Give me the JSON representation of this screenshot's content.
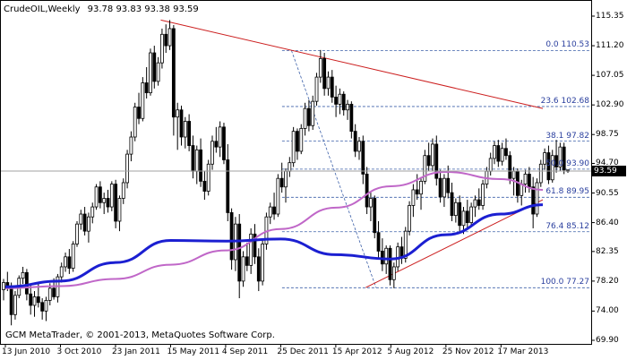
{
  "header": {
    "symbol": "CrudeOIL,Weekly",
    "ohlc": [
      "93.78",
      "93.83",
      "93.38",
      "93.59"
    ]
  },
  "footer": {
    "copyright": "GCM MetaTrader, © 2001-2013, MetaQuotes Software Corp."
  },
  "current_price": "93.59",
  "colors": {
    "candles": "#000000",
    "ma_fast": "#c067c8",
    "ma_slow": "#1b1fd1",
    "trendline": "#cc1f1f",
    "fib_levels": "#3b5fa8",
    "grid_frame": "#000000"
  },
  "chart_data": {
    "type": "candlestick",
    "instrument": "CrudeOIL",
    "timeframe": "Weekly",
    "y_axis": {
      "ticks": [
        "115.35",
        "111.20",
        "107.05",
        "102.90",
        "98.75",
        "94.70",
        "90.55",
        "86.40",
        "82.35",
        "78.20",
        "74.00",
        "69.90"
      ],
      "range": [
        69.9,
        115.35
      ]
    },
    "x_axis": {
      "ticks": [
        "13 Jun 2010",
        "3 Oct 2010",
        "23 Jan 2011",
        "15 May 2011",
        "4 Sep 2011",
        "25 Dec 2011",
        "15 Apr 2012",
        "5 Aug 2012",
        "25 Nov 2012",
        "17 Mar 2013"
      ]
    },
    "fibonacci_levels": [
      {
        "label": "0.0 110.53",
        "value": 110.53
      },
      {
        "label": "23.6 102.68",
        "value": 102.68
      },
      {
        "label": "38.1 97.82",
        "value": 97.82
      },
      {
        "label": "50.0 93.90",
        "value": 93.9
      },
      {
        "label": "61.8 89.95",
        "value": 89.95
      },
      {
        "label": "76.4 85.12",
        "value": 85.12
      },
      {
        "label": "100.0 77.27",
        "value": 77.27
      }
    ],
    "trendlines": [
      {
        "from": [
          "25 Apr 2011",
          114.8
        ],
        "to": [
          "10 Jun 2013",
          102.4
        ]
      },
      {
        "from": [
          "15 Jun 2012",
          77.3
        ],
        "to": [
          "10 Jun 2013",
          89.6
        ]
      }
    ],
    "series": [
      {
        "kind": "moving_average",
        "x": [
          "13 Jun 2010",
          "3 Oct 2010",
          "23 Jan 2011",
          "15 May 2011",
          "4 Sep 2011",
          "25 Dec 2011",
          "15 Apr 2012",
          "5 Aug 2012",
          "25 Nov 2012",
          "17 Mar 2013",
          "10 Jun 2013"
        ],
        "values": [
          77.2,
          77.5,
          78.5,
          80.5,
          82.5,
          85.5,
          88.5,
          91.5,
          93.5,
          92.5,
          91.0
        ]
      },
      {
        "kind": "moving_average",
        "x": [
          "13 Jun 2010",
          "3 Oct 2010",
          "23 Jan 2011",
          "15 May 2011",
          "4 Sep 2011",
          "25 Dec 2011",
          "15 Apr 2012",
          "5 Aug 2012",
          "25 Nov 2012",
          "17 Mar 2013",
          "10 Jun 2013"
        ],
        "values": [
          77.4,
          78.2,
          80.8,
          83.9,
          83.8,
          84.1,
          81.9,
          81.3,
          84.7,
          87.6,
          88.9
        ]
      }
    ],
    "candles": [
      [
        77.0,
        78.5,
        75.5,
        78.0
      ],
      [
        78.0,
        79.5,
        76.8,
        77.2
      ],
      [
        77.2,
        78.0,
        72.0,
        73.5
      ],
      [
        73.5,
        76.8,
        72.8,
        76.2
      ],
      [
        76.2,
        79.0,
        75.8,
        78.6
      ],
      [
        78.6,
        80.2,
        77.8,
        79.4
      ],
      [
        79.4,
        79.9,
        75.5,
        76.4
      ],
      [
        76.4,
        77.6,
        73.5,
        74.8
      ],
      [
        74.8,
        76.8,
        73.2,
        76.0
      ],
      [
        76.0,
        77.8,
        74.5,
        75.2
      ],
      [
        75.2,
        75.8,
        72.8,
        74.0
      ],
      [
        74.0,
        76.0,
        72.6,
        75.5
      ],
      [
        75.5,
        77.9,
        74.8,
        77.2
      ],
      [
        77.2,
        78.6,
        75.6,
        76.0
      ],
      [
        76.0,
        79.2,
        75.2,
        78.8
      ],
      [
        78.8,
        80.8,
        78.0,
        80.2
      ],
      [
        80.2,
        82.2,
        79.5,
        81.6
      ],
      [
        81.6,
        82.7,
        79.2,
        80.0
      ],
      [
        80.0,
        83.8,
        79.5,
        83.4
      ],
      [
        83.4,
        86.6,
        83.0,
        86.2
      ],
      [
        86.2,
        88.2,
        85.4,
        87.6
      ],
      [
        87.6,
        88.6,
        84.6,
        85.2
      ],
      [
        85.2,
        87.8,
        83.6,
        87.2
      ],
      [
        87.2,
        89.2,
        86.3,
        88.6
      ],
      [
        88.6,
        91.8,
        88.2,
        91.4
      ],
      [
        91.4,
        92.2,
        88.4,
        89.2
      ],
      [
        89.2,
        90.6,
        87.6,
        89.8
      ],
      [
        89.8,
        91.0,
        87.8,
        88.6
      ],
      [
        88.6,
        92.2,
        88.0,
        91.8
      ],
      [
        91.8,
        92.4,
        85.6,
        86.6
      ],
      [
        86.6,
        90.2,
        85.2,
        89.8
      ],
      [
        89.8,
        92.6,
        89.0,
        92.0
      ],
      [
        92.0,
        96.6,
        91.2,
        96.0
      ],
      [
        96.0,
        99.2,
        95.0,
        98.4
      ],
      [
        98.4,
        103.2,
        97.8,
        102.6
      ],
      [
        102.6,
        104.6,
        100.2,
        101.0
      ],
      [
        101.0,
        106.8,
        100.6,
        106.0
      ],
      [
        106.0,
        108.2,
        103.8,
        104.6
      ],
      [
        104.6,
        110.8,
        104.2,
        110.2
      ],
      [
        110.2,
        111.2,
        105.2,
        106.2
      ],
      [
        106.2,
        109.6,
        105.6,
        108.8
      ],
      [
        108.8,
        113.6,
        108.0,
        112.8
      ],
      [
        112.8,
        114.2,
        110.2,
        111.2
      ],
      [
        111.2,
        114.8,
        110.6,
        113.6
      ],
      [
        113.6,
        114.1,
        98.6,
        101.2
      ],
      [
        101.2,
        103.2,
        96.6,
        102.2
      ],
      [
        102.2,
        102.8,
        97.2,
        98.4
      ],
      [
        98.4,
        101.2,
        96.8,
        100.6
      ],
      [
        100.6,
        101.6,
        96.4,
        97.2
      ],
      [
        97.2,
        98.6,
        92.6,
        93.6
      ],
      [
        93.6,
        97.2,
        91.8,
        96.6
      ],
      [
        96.6,
        98.2,
        91.4,
        92.2
      ],
      [
        92.2,
        93.6,
        89.6,
        90.8
      ],
      [
        90.8,
        95.2,
        90.2,
        94.6
      ],
      [
        94.6,
        98.6,
        93.8,
        97.8
      ],
      [
        97.8,
        99.8,
        96.2,
        97.0
      ],
      [
        97.0,
        100.6,
        95.6,
        99.8
      ],
      [
        99.8,
        100.4,
        94.6,
        95.2
      ],
      [
        95.2,
        97.4,
        86.6,
        87.8
      ],
      [
        87.8,
        88.4,
        79.8,
        81.2
      ],
      [
        81.2,
        87.2,
        79.6,
        86.2
      ],
      [
        86.2,
        87.6,
        75.8,
        78.2
      ],
      [
        78.2,
        82.4,
        77.4,
        81.6
      ],
      [
        81.6,
        83.6,
        79.6,
        80.4
      ],
      [
        80.4,
        85.6,
        79.2,
        84.8
      ],
      [
        84.8,
        86.2,
        80.6,
        81.6
      ],
      [
        81.6,
        82.8,
        76.8,
        78.2
      ],
      [
        78.2,
        84.2,
        77.6,
        83.4
      ],
      [
        83.4,
        87.8,
        82.6,
        87.2
      ],
      [
        87.2,
        89.2,
        86.2,
        88.6
      ],
      [
        88.6,
        90.6,
        86.8,
        87.6
      ],
      [
        87.6,
        93.2,
        87.2,
        92.6
      ],
      [
        92.6,
        94.8,
        90.6,
        91.4
      ],
      [
        91.4,
        94.0,
        89.2,
        93.6
      ],
      [
        93.6,
        95.6,
        92.8,
        94.8
      ],
      [
        94.8,
        99.8,
        94.2,
        99.2
      ],
      [
        99.2,
        99.6,
        95.2,
        96.4
      ],
      [
        96.4,
        100.2,
        96.0,
        99.6
      ],
      [
        99.6,
        103.2,
        98.6,
        102.4
      ],
      [
        102.4,
        103.6,
        99.2,
        100.0
      ],
      [
        100.0,
        104.2,
        99.4,
        103.4
      ],
      [
        103.4,
        107.4,
        102.8,
        106.8
      ],
      [
        106.8,
        110.6,
        106.0,
        109.4
      ],
      [
        109.4,
        110.2,
        104.2,
        105.2
      ],
      [
        105.2,
        107.6,
        104.2,
        106.8
      ],
      [
        106.8,
        107.8,
        103.2,
        104.0
      ],
      [
        104.0,
        105.6,
        101.2,
        103.0
      ],
      [
        103.0,
        105.2,
        101.6,
        104.4
      ],
      [
        104.4,
        104.8,
        101.4,
        102.2
      ],
      [
        102.2,
        103.6,
        100.8,
        103.0
      ],
      [
        103.0,
        103.4,
        98.2,
        99.2
      ],
      [
        99.2,
        100.2,
        95.6,
        96.4
      ],
      [
        96.4,
        98.4,
        95.2,
        97.8
      ],
      [
        97.8,
        98.6,
        91.8,
        93.2
      ],
      [
        93.2,
        94.2,
        87.6,
        88.6
      ],
      [
        88.6,
        90.6,
        86.6,
        89.8
      ],
      [
        89.8,
        90.2,
        84.2,
        85.0
      ],
      [
        85.0,
        86.6,
        81.2,
        82.4
      ],
      [
        82.4,
        84.2,
        79.6,
        80.6
      ],
      [
        80.6,
        83.2,
        79.2,
        82.8
      ],
      [
        82.8,
        83.2,
        77.6,
        78.4
      ],
      [
        78.4,
        80.8,
        77.2,
        80.2
      ],
      [
        80.2,
        83.6,
        79.6,
        83.0
      ],
      [
        83.0,
        84.4,
        80.6,
        81.4
      ],
      [
        81.4,
        85.8,
        80.8,
        85.2
      ],
      [
        85.2,
        89.4,
        84.6,
        88.8
      ],
      [
        88.8,
        91.8,
        87.2,
        91.0
      ],
      [
        91.0,
        93.2,
        89.6,
        90.4
      ],
      [
        90.4,
        92.8,
        88.2,
        92.2
      ],
      [
        92.2,
        96.6,
        91.8,
        95.8
      ],
      [
        95.8,
        97.6,
        93.6,
        94.4
      ],
      [
        94.4,
        98.2,
        93.6,
        97.4
      ],
      [
        97.4,
        98.6,
        91.6,
        92.6
      ],
      [
        92.6,
        93.8,
        89.2,
        90.0
      ],
      [
        90.0,
        93.2,
        88.6,
        92.6
      ],
      [
        92.6,
        94.4,
        89.8,
        90.6
      ],
      [
        90.6,
        92.0,
        86.6,
        87.4
      ],
      [
        87.4,
        89.8,
        86.4,
        89.2
      ],
      [
        89.2,
        90.2,
        85.2,
        86.0
      ],
      [
        86.0,
        88.6,
        84.8,
        88.0
      ],
      [
        88.0,
        89.6,
        85.6,
        86.4
      ],
      [
        86.4,
        89.2,
        85.8,
        88.6
      ],
      [
        88.6,
        90.2,
        87.2,
        89.6
      ],
      [
        89.6,
        91.2,
        88.2,
        88.8
      ],
      [
        88.8,
        92.4,
        88.2,
        91.8
      ],
      [
        91.8,
        94.2,
        91.2,
        93.6
      ],
      [
        93.6,
        96.2,
        93.0,
        95.4
      ],
      [
        95.4,
        97.8,
        94.6,
        97.2
      ],
      [
        97.2,
        98.0,
        94.2,
        95.0
      ],
      [
        95.0,
        97.6,
        94.4,
        96.8
      ],
      [
        96.8,
        98.2,
        95.2,
        95.8
      ],
      [
        95.8,
        96.4,
        91.8,
        92.6
      ],
      [
        92.6,
        94.2,
        90.2,
        93.6
      ],
      [
        93.6,
        94.0,
        89.2,
        90.2
      ],
      [
        90.2,
        92.4,
        88.8,
        91.8
      ],
      [
        91.8,
        93.8,
        90.6,
        93.2
      ],
      [
        93.2,
        94.2,
        90.6,
        91.4
      ],
      [
        91.4,
        92.8,
        85.6,
        87.6
      ],
      [
        87.6,
        92.6,
        87.2,
        92.0
      ],
      [
        92.0,
        95.2,
        91.4,
        94.6
      ],
      [
        94.6,
        96.8,
        93.8,
        96.2
      ],
      [
        96.2,
        97.2,
        91.8,
        92.4
      ],
      [
        92.4,
        96.6,
        92.0,
        95.8
      ],
      [
        95.8,
        98.0,
        93.4,
        94.2
      ],
      [
        94.2,
        97.6,
        93.6,
        97.0
      ],
      [
        97.0,
        97.6,
        93.2,
        93.78
      ],
      [
        93.78,
        93.83,
        93.38,
        93.59
      ]
    ]
  }
}
